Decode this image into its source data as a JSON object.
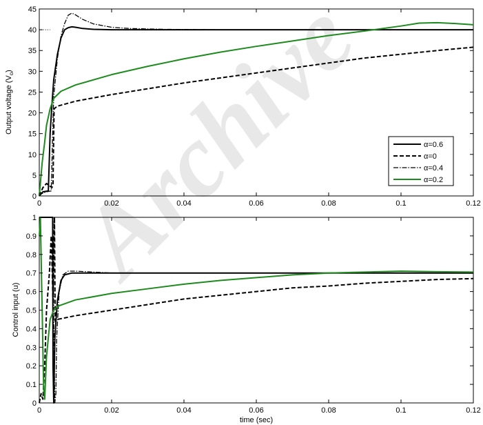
{
  "watermark": "Archive",
  "chart_data": [
    {
      "id": "top",
      "type": "line",
      "title": "",
      "xlabel": "",
      "ylabel_main": "Output voltage (V",
      "ylabel_sub": "o",
      "ylabel_end": ")",
      "xlim": [
        0,
        0.12
      ],
      "ylim": [
        0,
        45
      ],
      "xticks": [
        0,
        0.02,
        0.04,
        0.06,
        0.08,
        0.1,
        0.12
      ],
      "xtick_labels": [
        "0",
        "0.02",
        "0.04",
        "0.06",
        "0.08",
        "0.1",
        "0.12"
      ],
      "yticks": [
        0,
        5,
        10,
        15,
        20,
        25,
        30,
        35,
        40,
        45
      ],
      "ytick_labels": [
        "0",
        "5",
        "10",
        "15",
        "20",
        "25",
        "30",
        "35",
        "40",
        "45"
      ],
      "grid": false,
      "legend_position": "right",
      "reference": {
        "value": 40,
        "style": "dotted",
        "x": [
          0,
          0.003
        ]
      },
      "series": [
        {
          "name": "α=0.6",
          "style": "solid",
          "color": "#000000",
          "points": [
            [
              0,
              0
            ],
            [
              0.0005,
              0.5
            ],
            [
              0.001,
              1.0
            ],
            [
              0.0025,
              1.2
            ],
            [
              0.003,
              15
            ],
            [
              0.0035,
              22
            ],
            [
              0.004,
              28
            ],
            [
              0.005,
              34
            ],
            [
              0.006,
              38
            ],
            [
              0.007,
              40
            ],
            [
              0.008,
              40.5
            ],
            [
              0.009,
              40.7
            ],
            [
              0.01,
              40.6
            ],
            [
              0.012,
              40.3
            ],
            [
              0.015,
              40.1
            ],
            [
              0.02,
              40.0
            ],
            [
              0.05,
              40.0
            ],
            [
              0.12,
              40.0
            ]
          ]
        },
        {
          "name": "α=0",
          "style": "dashed",
          "color": "#000000",
          "points": [
            [
              0,
              0
            ],
            [
              0.001,
              2
            ],
            [
              0.002,
              3
            ],
            [
              0.0035,
              2
            ],
            [
              0.0038,
              3
            ],
            [
              0.0041,
              21
            ],
            [
              0.005,
              21.6
            ],
            [
              0.01,
              22.8
            ],
            [
              0.02,
              24.4
            ],
            [
              0.03,
              25.8
            ],
            [
              0.04,
              27.2
            ],
            [
              0.05,
              28.4
            ],
            [
              0.06,
              29.6
            ],
            [
              0.07,
              30.8
            ],
            [
              0.08,
              32.0
            ],
            [
              0.09,
              33.2
            ],
            [
              0.1,
              34.1
            ],
            [
              0.11,
              35.0
            ],
            [
              0.12,
              35.8
            ]
          ]
        },
        {
          "name": "α=0.4",
          "style": "dashdot",
          "color": "#000000",
          "points": [
            [
              0,
              0
            ],
            [
              0.0005,
              0.5
            ],
            [
              0.002,
              1.0
            ],
            [
              0.0033,
              1.2
            ],
            [
              0.0037,
              15
            ],
            [
              0.004,
              24
            ],
            [
              0.005,
              33
            ],
            [
              0.006,
              38.5
            ],
            [
              0.007,
              41.5
            ],
            [
              0.008,
              43.5
            ],
            [
              0.009,
              44.0
            ],
            [
              0.01,
              43.6
            ],
            [
              0.012,
              42.5
            ],
            [
              0.015,
              41.4
            ],
            [
              0.02,
              40.6
            ],
            [
              0.025,
              40.3
            ],
            [
              0.035,
              40.1
            ],
            [
              0.05,
              40.0
            ],
            [
              0.12,
              40.0
            ]
          ]
        },
        {
          "name": "α=0.2",
          "style": "solid",
          "color": "#1e8a1e",
          "points": [
            [
              0,
              0
            ],
            [
              0.0003,
              3
            ],
            [
              0.0008,
              8
            ],
            [
              0.0015,
              13
            ],
            [
              0.002,
              17
            ],
            [
              0.003,
              21
            ],
            [
              0.004,
              23.5
            ],
            [
              0.006,
              25.2
            ],
            [
              0.01,
              26.7
            ],
            [
              0.02,
              29.2
            ],
            [
              0.03,
              31.2
            ],
            [
              0.04,
              33.0
            ],
            [
              0.05,
              34.6
            ],
            [
              0.06,
              36.0
            ],
            [
              0.07,
              37.3
            ],
            [
              0.08,
              38.6
            ],
            [
              0.09,
              39.7
            ],
            [
              0.1,
              40.9
            ],
            [
              0.105,
              41.6
            ],
            [
              0.11,
              41.7
            ],
            [
              0.115,
              41.5
            ],
            [
              0.12,
              41.2
            ]
          ]
        }
      ]
    },
    {
      "id": "bottom",
      "type": "line",
      "title": "",
      "xlabel": "time (sec)",
      "ylabel": "Control input (u)",
      "xlim": [
        0,
        0.12
      ],
      "ylim": [
        0,
        1
      ],
      "xticks": [
        0,
        0.02,
        0.04,
        0.06,
        0.08,
        0.1,
        0.12
      ],
      "xtick_labels": [
        "0",
        "0.02",
        "0.04",
        "0.06",
        "0.08",
        "0.1",
        "0.12"
      ],
      "yticks": [
        0,
        0.1,
        0.2,
        0.3,
        0.4,
        0.5,
        0.6,
        0.7,
        0.8,
        0.9,
        1
      ],
      "ytick_labels": [
        "0",
        "0.1",
        "0.2",
        "0.3",
        "0.4",
        "0.5",
        "0.6",
        "0.7",
        "0.8",
        "0.9",
        "1"
      ],
      "grid": false,
      "series": [
        {
          "name": "α=0.6",
          "style": "solid",
          "color": "#000000",
          "points": [
            [
              0,
              1
            ],
            [
              0.0037,
              1
            ],
            [
              0.0038,
              0.2
            ],
            [
              0.004,
              0.0
            ],
            [
              0.0043,
              0.35
            ],
            [
              0.005,
              0.55
            ],
            [
              0.006,
              0.66
            ],
            [
              0.007,
              0.69
            ],
            [
              0.009,
              0.7
            ],
            [
              0.12,
              0.7
            ]
          ]
        },
        {
          "name": "α=0",
          "style": "dashed",
          "color": "#000000",
          "points": [
            [
              0,
              0.0
            ],
            [
              0.0005,
              0.05
            ],
            [
              0.001,
              0.02
            ],
            [
              0.0015,
              0.2
            ],
            [
              0.002,
              0.5
            ],
            [
              0.0028,
              0.7
            ],
            [
              0.0033,
              0.9
            ],
            [
              0.0038,
              0.55
            ],
            [
              0.0042,
              1.0
            ],
            [
              0.0044,
              0.44
            ],
            [
              0.005,
              0.45
            ],
            [
              0.01,
              0.47
            ],
            [
              0.02,
              0.5
            ],
            [
              0.03,
              0.53
            ],
            [
              0.04,
              0.56
            ],
            [
              0.05,
              0.58
            ],
            [
              0.06,
              0.6
            ],
            [
              0.07,
              0.62
            ],
            [
              0.08,
              0.63
            ],
            [
              0.09,
              0.645
            ],
            [
              0.1,
              0.655
            ],
            [
              0.11,
              0.665
            ],
            [
              0.12,
              0.67
            ]
          ]
        },
        {
          "name": "α=0.4",
          "style": "dashdot",
          "color": "#000000",
          "points": [
            [
              0,
              1
            ],
            [
              0.0038,
              1
            ],
            [
              0.004,
              0.45
            ],
            [
              0.0043,
              0.0
            ],
            [
              0.0046,
              0.05
            ],
            [
              0.0048,
              0.35
            ],
            [
              0.0055,
              0.6
            ],
            [
              0.0065,
              0.69
            ],
            [
              0.008,
              0.71
            ],
            [
              0.01,
              0.71
            ],
            [
              0.015,
              0.705
            ],
            [
              0.02,
              0.7
            ],
            [
              0.12,
              0.7
            ]
          ]
        },
        {
          "name": "α=0.2",
          "style": "solid",
          "color": "#1e8a1e",
          "points": [
            [
              0,
              0.9
            ],
            [
              0.0003,
              1.0
            ],
            [
              0.0008,
              0.5
            ],
            [
              0.0012,
              0.08
            ],
            [
              0.0015,
              0.02
            ],
            [
              0.002,
              0.25
            ],
            [
              0.003,
              0.45
            ],
            [
              0.004,
              0.5
            ],
            [
              0.005,
              0.52
            ],
            [
              0.01,
              0.555
            ],
            [
              0.02,
              0.59
            ],
            [
              0.03,
              0.615
            ],
            [
              0.04,
              0.64
            ],
            [
              0.05,
              0.66
            ],
            [
              0.06,
              0.675
            ],
            [
              0.07,
              0.69
            ],
            [
              0.08,
              0.7
            ],
            [
              0.09,
              0.705
            ],
            [
              0.1,
              0.71
            ],
            [
              0.11,
              0.707
            ],
            [
              0.12,
              0.705
            ]
          ]
        }
      ]
    }
  ]
}
